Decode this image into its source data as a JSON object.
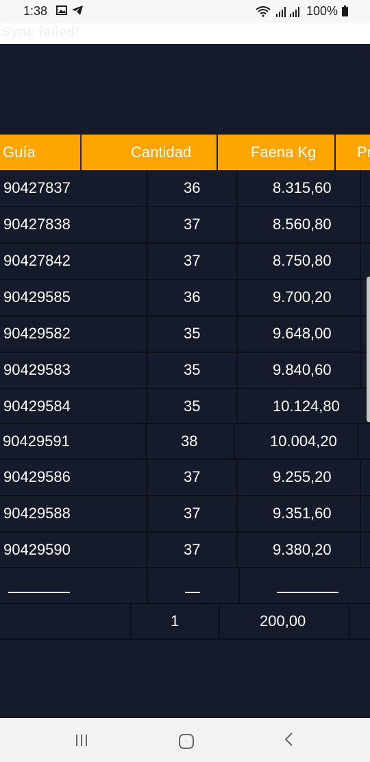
{
  "status_bar": {
    "time": "1:38",
    "battery": "100%"
  },
  "banner": {
    "text": "Sync failed!"
  },
  "table": {
    "headers": [
      "Guía",
      "Cantidad",
      "Faena Kg",
      "Pr"
    ],
    "rows": [
      [
        "90427837",
        "36",
        "8.315,60"
      ],
      [
        "90427838",
        "37",
        "8.560,80"
      ],
      [
        "90427842",
        "37",
        "8.750,80"
      ],
      [
        "90429585",
        "36",
        "9.700,20"
      ],
      [
        "90429582",
        "35",
        "9.648,00"
      ],
      [
        "90429583",
        "35",
        "9.840,60"
      ],
      [
        "90429584",
        "35",
        "10.124,80"
      ],
      [
        "90429591",
        "38",
        "10.004,20"
      ],
      [
        "90429586",
        "37",
        "9.255,20"
      ],
      [
        "90429588",
        "37",
        "9.351,60"
      ],
      [
        "90429590",
        "37",
        "9.380,20"
      ]
    ],
    "totals": {
      "cantidad": "1",
      "faena": "200,00"
    }
  },
  "icons": {
    "status": [
      "gallery-icon",
      "telegram-icon",
      "wifi-icon",
      "signal-icon",
      "battery-icon"
    ],
    "nav": [
      "recents-icon",
      "home-icon",
      "back-icon"
    ]
  },
  "colors": {
    "header": "#fea500",
    "background": "#161b2c"
  }
}
